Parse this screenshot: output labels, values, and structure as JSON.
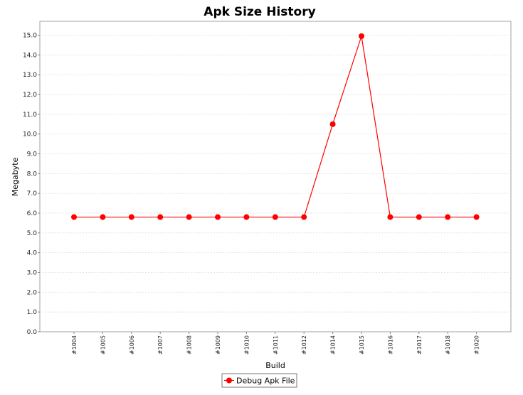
{
  "chart_data": {
    "type": "line",
    "title": "Apk Size History",
    "xlabel": "Build",
    "ylabel": "Megabyte",
    "categories": [
      "#1004",
      "#1005",
      "#1006",
      "#1007",
      "#1008",
      "#1009",
      "#1010",
      "#1011",
      "#1012",
      "#1014",
      "#1015",
      "#1016",
      "#1017",
      "#1018",
      "#1020"
    ],
    "series": [
      {
        "name": "Debug Apk File",
        "color": "#ff0000",
        "values": [
          5.8,
          5.8,
          5.8,
          5.8,
          5.8,
          5.8,
          5.8,
          5.8,
          5.8,
          10.5,
          14.95,
          5.8,
          5.8,
          5.8,
          5.8
        ]
      }
    ],
    "ylim": [
      0,
      15.7
    ],
    "yticks": [
      0.0,
      1.0,
      2.0,
      3.0,
      4.0,
      5.0,
      6.0,
      7.0,
      8.0,
      9.0,
      10.0,
      11.0,
      12.0,
      13.0,
      14.0,
      15.0
    ],
    "ytick_labels": [
      "0.0",
      "1.0",
      "2.0",
      "3.0",
      "4.0",
      "5.0",
      "6.0",
      "7.0",
      "8.0",
      "9.0",
      "10.0",
      "11.0",
      "12.0",
      "13.0",
      "14.0",
      "15.0"
    ],
    "grid": true,
    "legend_position": "bottom-center"
  }
}
